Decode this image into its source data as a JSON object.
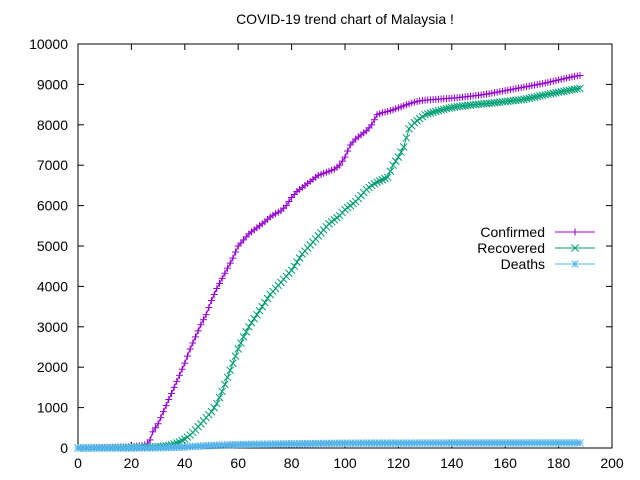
{
  "chart_data": {
    "type": "line",
    "title": "COVID-19 trend chart of Malaysia !",
    "xlabel": "",
    "ylabel": "",
    "xlim": [
      0,
      200
    ],
    "ylim": [
      0,
      10000
    ],
    "xticks": [
      0,
      20,
      40,
      60,
      80,
      100,
      120,
      140,
      160,
      180,
      200
    ],
    "yticks": [
      0,
      1000,
      2000,
      3000,
      4000,
      5000,
      6000,
      7000,
      8000,
      9000,
      10000
    ],
    "grid": false,
    "legend_position": "right",
    "series": [
      {
        "name": "Confirmed",
        "color": "#9400d3",
        "marker": "plus",
        "points": [
          [
            0,
            0
          ],
          [
            4,
            3
          ],
          [
            8,
            7
          ],
          [
            12,
            15
          ],
          [
            16,
            25
          ],
          [
            20,
            30
          ],
          [
            24,
            60
          ],
          [
            26,
            100
          ],
          [
            27,
            200
          ],
          [
            28,
            400
          ],
          [
            30,
            600
          ],
          [
            32,
            900
          ],
          [
            34,
            1200
          ],
          [
            36,
            1500
          ],
          [
            38,
            1800
          ],
          [
            40,
            2100
          ],
          [
            42,
            2450
          ],
          [
            44,
            2750
          ],
          [
            46,
            3050
          ],
          [
            48,
            3300
          ],
          [
            50,
            3650
          ],
          [
            52,
            3950
          ],
          [
            54,
            4200
          ],
          [
            56,
            4450
          ],
          [
            58,
            4700
          ],
          [
            60,
            5000
          ],
          [
            62,
            5150
          ],
          [
            64,
            5300
          ],
          [
            66,
            5400
          ],
          [
            68,
            5500
          ],
          [
            70,
            5600
          ],
          [
            72,
            5720
          ],
          [
            74,
            5800
          ],
          [
            76,
            5870
          ],
          [
            78,
            6000
          ],
          [
            80,
            6200
          ],
          [
            82,
            6350
          ],
          [
            84,
            6450
          ],
          [
            86,
            6550
          ],
          [
            88,
            6650
          ],
          [
            90,
            6750
          ],
          [
            92,
            6800
          ],
          [
            94,
            6850
          ],
          [
            96,
            6900
          ],
          [
            98,
            7000
          ],
          [
            100,
            7200
          ],
          [
            102,
            7500
          ],
          [
            104,
            7650
          ],
          [
            106,
            7750
          ],
          [
            108,
            7850
          ],
          [
            110,
            8000
          ],
          [
            112,
            8250
          ],
          [
            114,
            8300
          ],
          [
            116,
            8330
          ],
          [
            118,
            8370
          ],
          [
            120,
            8420
          ],
          [
            122,
            8470
          ],
          [
            124,
            8520
          ],
          [
            126,
            8560
          ],
          [
            128,
            8590
          ],
          [
            130,
            8610
          ],
          [
            134,
            8630
          ],
          [
            138,
            8650
          ],
          [
            142,
            8670
          ],
          [
            146,
            8700
          ],
          [
            150,
            8730
          ],
          [
            154,
            8770
          ],
          [
            158,
            8820
          ],
          [
            162,
            8870
          ],
          [
            166,
            8920
          ],
          [
            170,
            8970
          ],
          [
            174,
            9020
          ],
          [
            178,
            9080
          ],
          [
            182,
            9140
          ],
          [
            186,
            9200
          ],
          [
            188,
            9220
          ]
        ]
      },
      {
        "name": "Recovered",
        "color": "#009e73",
        "marker": "cross",
        "points": [
          [
            0,
            0
          ],
          [
            10,
            3
          ],
          [
            20,
            10
          ],
          [
            26,
            20
          ],
          [
            30,
            30
          ],
          [
            34,
            60
          ],
          [
            36,
            100
          ],
          [
            38,
            150
          ],
          [
            40,
            220
          ],
          [
            42,
            320
          ],
          [
            44,
            450
          ],
          [
            46,
            600
          ],
          [
            48,
            750
          ],
          [
            50,
            900
          ],
          [
            52,
            1100
          ],
          [
            54,
            1400
          ],
          [
            56,
            1750
          ],
          [
            58,
            2100
          ],
          [
            60,
            2450
          ],
          [
            62,
            2750
          ],
          [
            64,
            3000
          ],
          [
            66,
            3200
          ],
          [
            68,
            3400
          ],
          [
            70,
            3600
          ],
          [
            72,
            3800
          ],
          [
            74,
            3950
          ],
          [
            76,
            4100
          ],
          [
            78,
            4250
          ],
          [
            80,
            4400
          ],
          [
            82,
            4600
          ],
          [
            84,
            4800
          ],
          [
            86,
            4950
          ],
          [
            88,
            5100
          ],
          [
            90,
            5250
          ],
          [
            92,
            5400
          ],
          [
            94,
            5550
          ],
          [
            96,
            5650
          ],
          [
            98,
            5750
          ],
          [
            100,
            5900
          ],
          [
            102,
            6000
          ],
          [
            104,
            6100
          ],
          [
            106,
            6250
          ],
          [
            108,
            6400
          ],
          [
            110,
            6500
          ],
          [
            112,
            6580
          ],
          [
            114,
            6640
          ],
          [
            116,
            6700
          ],
          [
            118,
            7000
          ],
          [
            120,
            7200
          ],
          [
            122,
            7450
          ],
          [
            124,
            7900
          ],
          [
            126,
            8050
          ],
          [
            128,
            8150
          ],
          [
            130,
            8250
          ],
          [
            134,
            8330
          ],
          [
            138,
            8400
          ],
          [
            142,
            8450
          ],
          [
            146,
            8480
          ],
          [
            150,
            8510
          ],
          [
            154,
            8530
          ],
          [
            158,
            8560
          ],
          [
            162,
            8590
          ],
          [
            166,
            8620
          ],
          [
            170,
            8670
          ],
          [
            174,
            8730
          ],
          [
            178,
            8780
          ],
          [
            182,
            8830
          ],
          [
            186,
            8880
          ],
          [
            188,
            8900
          ]
        ]
      },
      {
        "name": "Deaths",
        "color": "#56b4e9",
        "marker": "star",
        "points": [
          [
            0,
            0
          ],
          [
            20,
            0
          ],
          [
            30,
            5
          ],
          [
            36,
            15
          ],
          [
            40,
            25
          ],
          [
            44,
            40
          ],
          [
            48,
            55
          ],
          [
            52,
            65
          ],
          [
            56,
            75
          ],
          [
            60,
            85
          ],
          [
            64,
            90
          ],
          [
            70,
            95
          ],
          [
            76,
            100
          ],
          [
            82,
            105
          ],
          [
            88,
            110
          ],
          [
            94,
            115
          ],
          [
            100,
            118
          ],
          [
            110,
            120
          ],
          [
            120,
            121
          ],
          [
            130,
            122
          ],
          [
            140,
            123
          ],
          [
            150,
            124
          ],
          [
            160,
            124
          ],
          [
            170,
            125
          ],
          [
            180,
            125
          ],
          [
            188,
            125
          ]
        ]
      }
    ]
  }
}
